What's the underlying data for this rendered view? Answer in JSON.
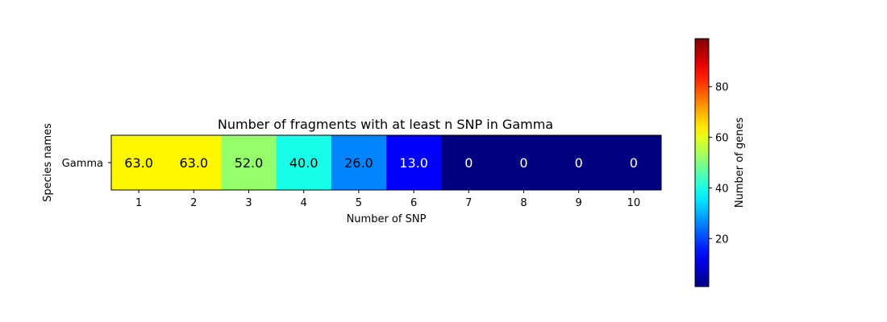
{
  "chart_data": {
    "type": "heatmap",
    "title": "Number of fragments with at least n SNP in Gamma",
    "xlabel": "Number of SNP",
    "ylabel": "Species names",
    "x_categories": [
      "1",
      "2",
      "3",
      "4",
      "5",
      "6",
      "7",
      "8",
      "9",
      "10"
    ],
    "y_categories": [
      "Gamma"
    ],
    "values": [
      [
        63,
        63,
        52,
        40,
        26,
        13,
        0,
        0,
        0,
        0
      ]
    ],
    "cell_labels": [
      [
        "63.0",
        "63.0",
        "52.0",
        "40.0",
        "26.0",
        "13.0",
        "0",
        "0",
        "0",
        "0"
      ]
    ],
    "colormap": "jet",
    "color_range": [
      1,
      99
    ],
    "colorbar": {
      "label": "Number of genes",
      "ticks": [
        20,
        40,
        60,
        80
      ],
      "tick_labels": [
        "20",
        "40",
        "60",
        "80"
      ]
    },
    "grid": false,
    "legend": "colorbar-right"
  }
}
